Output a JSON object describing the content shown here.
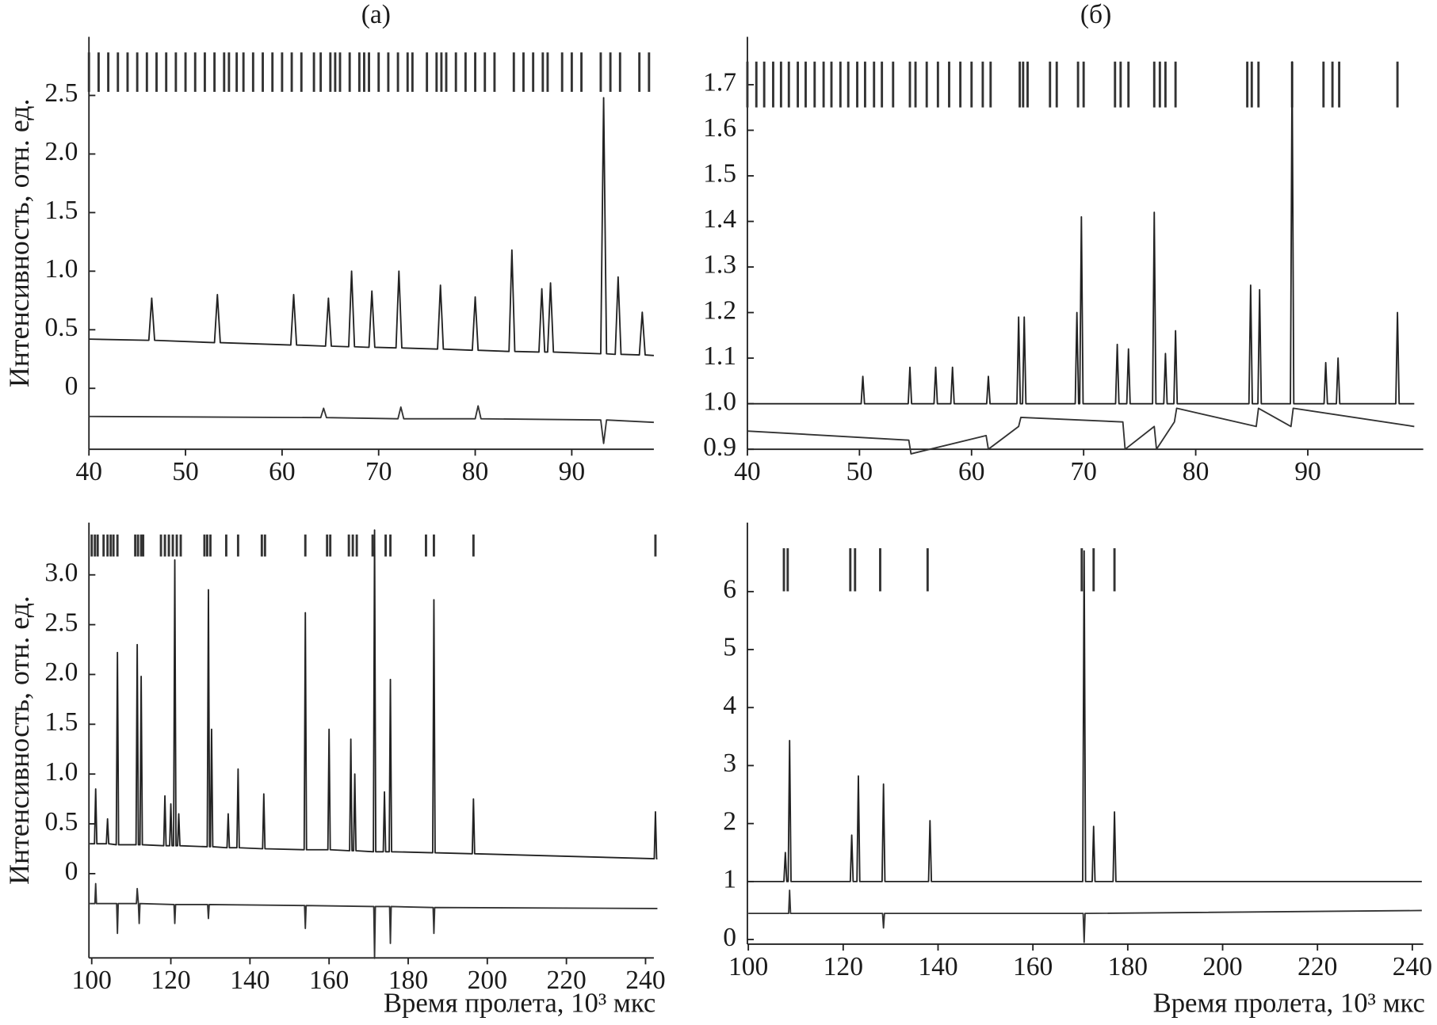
{
  "chart_data": [
    {
      "type": "line",
      "title": "(a)",
      "ylabel": "Интенсивность, отн. ед.",
      "xlim": [
        40,
        98.5
      ],
      "xticks": [
        40,
        50,
        60,
        70,
        80,
        90
      ],
      "ylim": [
        -0.52,
        3.0
      ],
      "yticks": [
        0,
        0.5,
        {
          "value": 1,
          "label": "1.0"
        },
        1.5,
        {
          "value": 2,
          "label": "2.0"
        },
        2.5
      ],
      "series": [
        {
          "color": "#222222",
          "x": [
            40,
            46.2,
            46.5,
            46.8,
            53.0,
            53.3,
            53.6,
            60.9,
            61.2,
            61.5,
            64.5,
            64.8,
            65.1,
            66.9,
            67.2,
            67.5,
            69.0,
            69.3,
            69.6,
            71.8,
            72.1,
            72.4,
            76.1,
            76.4,
            76.7,
            79.7,
            80.0,
            80.3,
            83.5,
            83.8,
            84.1,
            86.6,
            86.9,
            87.2,
            87.5,
            87.8,
            88.1,
            93.0,
            93.3,
            93.6,
            94.5,
            94.8,
            95.1,
            97.0,
            97.3,
            97.6,
            98.5
          ],
          "values": [
            0.42,
            0.41,
            0.77,
            0.41,
            0.39,
            0.8,
            0.39,
            0.37,
            0.8,
            0.37,
            0.36,
            0.77,
            0.36,
            0.355,
            1.0,
            0.355,
            0.35,
            0.83,
            0.35,
            0.345,
            1.0,
            0.345,
            0.335,
            0.88,
            0.335,
            0.325,
            0.78,
            0.325,
            0.315,
            1.18,
            0.315,
            0.31,
            0.85,
            0.31,
            0.31,
            0.9,
            0.31,
            0.295,
            2.48,
            0.295,
            0.29,
            0.95,
            0.29,
            0.285,
            0.65,
            0.285,
            0.28
          ]
        },
        {
          "color": "#333333",
          "x": [
            40,
            64.0,
            64.3,
            64.6,
            72.0,
            72.3,
            72.6,
            80.0,
            80.3,
            80.6,
            93.0,
            93.3,
            93.6,
            98.5
          ],
          "values": [
            -0.24,
            -0.25,
            -0.17,
            -0.25,
            -0.26,
            -0.16,
            -0.26,
            -0.26,
            -0.15,
            -0.26,
            -0.27,
            -0.47,
            -0.27,
            -0.29
          ]
        }
      ],
      "reflections": {
        "color": "#333333",
        "x": [
          40,
          41,
          42,
          43,
          44,
          45,
          46,
          47,
          48,
          49,
          50,
          51,
          52,
          53,
          54,
          54.5,
          55.3,
          56,
          57,
          58,
          59,
          60,
          61,
          62,
          63.3,
          64,
          65,
          65.5,
          66,
          67,
          68,
          68.5,
          69,
          70,
          71,
          72,
          73,
          73.5,
          75,
          76,
          76.5,
          77,
          78,
          79,
          80,
          81,
          82,
          84,
          85,
          86,
          87,
          87.5,
          89,
          90,
          91,
          93,
          94,
          95,
          97,
          98
        ]
      }
    },
    {
      "type": "line",
      "title": "(б)",
      "xlim": [
        40,
        100.3
      ],
      "xticks": [
        40,
        50,
        60,
        70,
        80,
        90
      ],
      "ylim": [
        0.9,
        1.805
      ],
      "yticks": [
        0.9,
        {
          "value": 1,
          "label": "1.0"
        },
        1.1,
        1.2,
        1.3,
        1.4,
        1.5,
        1.6,
        1.7
      ],
      "series": [
        {
          "color": "#222222",
          "x": [
            40,
            50.15,
            50.3,
            50.45,
            54.35,
            54.5,
            54.65,
            56.65,
            56.8,
            56.95,
            58.15,
            58.3,
            58.45,
            61.35,
            61.5,
            61.65,
            64.05,
            64.2,
            64.35,
            64.55,
            64.7,
            64.85,
            69.25,
            69.4,
            69.55,
            69.65,
            69.8,
            69.95,
            72.85,
            73.0,
            73.15,
            73.85,
            74.0,
            74.15,
            76.15,
            76.3,
            76.45,
            77.15,
            77.3,
            77.45,
            78.05,
            78.2,
            78.35,
            84.75,
            84.9,
            85.05,
            85.55,
            85.7,
            85.85,
            88.45,
            88.6,
            88.75,
            91.45,
            91.6,
            91.75,
            92.55,
            92.7,
            92.85,
            97.85,
            98.0,
            98.15,
            99.5
          ],
          "values": [
            1.0,
            1.0,
            1.06,
            1.0,
            1.0,
            1.08,
            1.0,
            1.0,
            1.08,
            1.0,
            1.0,
            1.08,
            1.0,
            1.0,
            1.06,
            1.0,
            1.0,
            1.19,
            1.0,
            1.0,
            1.19,
            1.0,
            1.0,
            1.2,
            1.0,
            1.0,
            1.41,
            1.0,
            1.0,
            1.13,
            1.0,
            1.0,
            1.12,
            1.0,
            1.0,
            1.42,
            1.0,
            1.0,
            1.11,
            1.0,
            1.0,
            1.16,
            1.0,
            1.0,
            1.26,
            1.0,
            1.0,
            1.25,
            1.0,
            1.0,
            1.75,
            1.0,
            1.0,
            1.09,
            1.0,
            1.0,
            1.1,
            1.0,
            1.0,
            1.2,
            1.0,
            1.0
          ]
        },
        {
          "color": "#333333",
          "x": [
            40,
            54.4,
            54.6,
            61.3,
            61.5,
            64.2,
            64.4,
            73.5,
            73.7,
            76.3,
            76.5,
            78.1,
            78.3,
            85.4,
            85.6,
            88.5,
            88.7,
            99.5
          ],
          "values": [
            0.94,
            0.92,
            0.89,
            0.93,
            0.9,
            0.95,
            0.97,
            0.96,
            0.9,
            0.95,
            0.9,
            0.96,
            0.99,
            0.95,
            0.99,
            0.95,
            0.99,
            0.95
          ]
        }
      ],
      "reflections": {
        "color": "#333333",
        "x": [
          40,
          40.8,
          41.5,
          42.3,
          43,
          43.7,
          44.5,
          45.2,
          46,
          46.8,
          47.5,
          48.3,
          49,
          49.8,
          50.5,
          51.3,
          52,
          53,
          54.5,
          55,
          56,
          57,
          58,
          59,
          60,
          61,
          61.7,
          64.3,
          64.6,
          65,
          67,
          67.6,
          69.5,
          70,
          72.8,
          73.3,
          74,
          76.3,
          76.8,
          77.3,
          78.2,
          84.6,
          85,
          85.6,
          88.6,
          91.4,
          92.2,
          92.8,
          98.0
        ]
      }
    },
    {
      "type": "line",
      "ylabel": "Интенсивность, отн. ед.",
      "xlabel": "Время пролета, 10³ мкс",
      "xlim": [
        99.3,
        242.1
      ],
      "xticks": [
        100,
        120,
        140,
        160,
        180,
        200,
        220,
        240
      ],
      "ylim": [
        -0.846,
        3.525
      ],
      "yticks": [
        0,
        0.5,
        {
          "value": 1,
          "label": "1.0"
        },
        1.5,
        {
          "value": 2,
          "label": "2.0"
        },
        2.5,
        {
          "value": 3,
          "label": "3.0"
        }
      ],
      "series": [
        {
          "color": "#222222",
          "x": [
            99.5,
            100.7,
            101,
            101.3,
            103.7,
            104,
            104.3,
            106.2,
            106.5,
            106.8,
            111.2,
            111.5,
            111.8,
            112.2,
            112.5,
            112.8,
            118.2,
            118.5,
            118.8,
            119.7,
            120,
            120.3,
            120.7,
            121,
            121.3,
            121.7,
            122,
            122.3,
            129.2,
            129.5,
            129.8,
            130.0,
            130.3,
            130.6,
            134.2,
            134.5,
            134.8,
            136.7,
            137,
            137.3,
            143.2,
            143.5,
            143.8,
            153.7,
            154,
            154.3,
            159.7,
            160,
            160.3,
            165.2,
            165.5,
            165.8,
            166.2,
            166.5,
            166.8,
            171.2,
            171.5,
            171.8,
            173.7,
            174,
            174.3,
            175.2,
            175.5,
            175.8,
            186.2,
            186.5,
            186.8,
            196.2,
            196.5,
            196.8,
            242.2,
            242.5,
            242.8,
            243
          ],
          "values": [
            0.3,
            0.3,
            0.85,
            0.3,
            0.3,
            0.55,
            0.3,
            0.29,
            2.22,
            0.29,
            0.29,
            2.3,
            0.29,
            0.29,
            1.98,
            0.29,
            0.28,
            0.78,
            0.28,
            0.28,
            0.7,
            0.28,
            0.28,
            3.15,
            0.28,
            0.28,
            0.6,
            0.28,
            0.27,
            2.85,
            0.27,
            0.27,
            1.45,
            0.27,
            0.26,
            0.6,
            0.26,
            0.26,
            1.05,
            0.26,
            0.25,
            0.8,
            0.25,
            0.24,
            2.62,
            0.24,
            0.24,
            1.45,
            0.24,
            0.23,
            1.35,
            0.23,
            0.23,
            1.0,
            0.23,
            0.22,
            3.45,
            0.22,
            0.22,
            0.82,
            0.22,
            0.22,
            1.95,
            0.22,
            0.21,
            2.75,
            0.21,
            0.2,
            0.75,
            0.2,
            0.15,
            0.62,
            0.15,
            0.15
          ]
        },
        {
          "color": "#333333",
          "x": [
            99.5,
            100.8,
            101,
            101.2,
            106.3,
            106.5,
            106.7,
            111.3,
            111.5,
            111.8,
            112,
            112.2,
            120.8,
            121,
            121.2,
            129.3,
            129.5,
            129.7,
            153.8,
            154,
            154.2,
            171.3,
            171.5,
            171.7,
            175.3,
            175.5,
            175.7,
            186.3,
            186.5,
            186.7,
            243
          ],
          "values": [
            -0.3,
            -0.3,
            -0.1,
            -0.3,
            -0.3,
            -0.6,
            -0.3,
            -0.3,
            -0.15,
            -0.3,
            -0.5,
            -0.3,
            -0.31,
            -0.5,
            -0.31,
            -0.31,
            -0.45,
            -0.31,
            -0.32,
            -0.55,
            -0.32,
            -0.33,
            -0.85,
            -0.33,
            -0.33,
            -0.7,
            -0.33,
            -0.34,
            -0.6,
            -0.34,
            -0.35
          ]
        }
      ],
      "reflections": {
        "color": "#333333",
        "x": [
          100,
          100.8,
          101.5,
          103,
          104,
          104.8,
          105.5,
          106.5,
          111,
          111.7,
          112.5,
          113,
          117.5,
          118.5,
          119.5,
          120.5,
          121.5,
          122.5,
          128.5,
          129.2,
          130,
          134,
          137,
          143,
          143.8,
          154,
          159.5,
          160.3,
          165,
          166,
          167,
          171,
          174.3,
          175.5,
          184.5,
          186.5,
          196.5,
          242.5
        ]
      }
    },
    {
      "type": "line",
      "xlabel": "Время пролета, 10³ мкс",
      "xlim": [
        99.8,
        242.3
      ],
      "xticks": [
        100,
        120,
        140,
        160,
        180,
        200,
        220,
        240
      ],
      "ylim": [
        -0.08,
        7.19
      ],
      "yticks": [
        0,
        1,
        2,
        3,
        4,
        5,
        6
      ],
      "series": [
        {
          "color": "#222222",
          "x": [
            100,
            107.5,
            107.8,
            108.1,
            108.4,
            108.7,
            109.0,
            121.5,
            121.8,
            122.1,
            122.9,
            123.2,
            123.5,
            128.2,
            128.5,
            128.8,
            138.0,
            138.3,
            138.6,
            170.5,
            170.8,
            171.1,
            172.5,
            172.8,
            173.1,
            176.9,
            177.2,
            177.5,
            242
          ],
          "values": [
            1.0,
            1.0,
            1.5,
            1.0,
            1.0,
            3.43,
            1.0,
            1.0,
            1.8,
            1.0,
            1.0,
            2.82,
            1.0,
            1.0,
            2.68,
            1.0,
            1.0,
            2.05,
            1.0,
            1.0,
            6.7,
            1.0,
            1.0,
            1.95,
            1.0,
            1.0,
            2.2,
            1.0,
            1.0
          ]
        },
        {
          "color": "#333333",
          "x": [
            100,
            108.5,
            108.7,
            108.9,
            128.3,
            128.5,
            128.7,
            170.6,
            170.8,
            171.0,
            242
          ],
          "values": [
            0.45,
            0.45,
            0.85,
            0.45,
            0.45,
            0.2,
            0.45,
            0.45,
            -0.05,
            0.45,
            0.5
          ]
        }
      ],
      "reflections": {
        "color": "#333333",
        "x": [
          107.5,
          108.3,
          121.5,
          122.5,
          127.8,
          137.8,
          170.3,
          172.8,
          177.2
        ]
      }
    }
  ]
}
